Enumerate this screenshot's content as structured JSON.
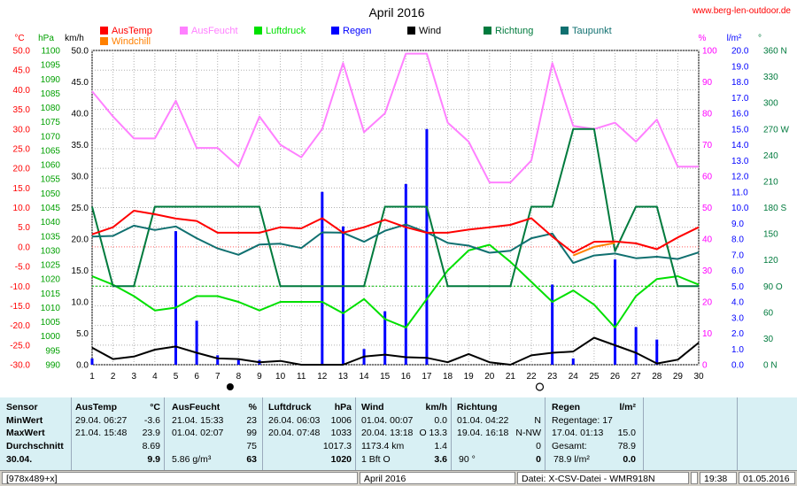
{
  "chart_data": {
    "type": "line",
    "title": "April 2016",
    "website": "www.berg-len-outdoor.de",
    "x": [
      1,
      2,
      3,
      4,
      5,
      6,
      7,
      8,
      9,
      10,
      11,
      12,
      13,
      14,
      15,
      16,
      17,
      18,
      19,
      20,
      21,
      22,
      23,
      24,
      25,
      26,
      27,
      28,
      29,
      30
    ],
    "x_tick_labels": [
      "1",
      "2",
      "3",
      "4",
      "5",
      "6",
      "7",
      "8",
      "9",
      "10",
      "11",
      "12",
      "13",
      "14",
      "15",
      "16",
      "17",
      "18",
      "19",
      "20",
      "21",
      "22",
      "23",
      "24",
      "25",
      "26",
      "27",
      "28",
      "29",
      "30"
    ],
    "moon_markers": {
      "full_moon": 7.6,
      "new_moon": 22.4
    },
    "axes": {
      "temp_c": {
        "label": "°C",
        "ylim": [
          -30,
          50
        ],
        "ticks": [
          "50.0",
          "45.0",
          "40.0",
          "35.0",
          "30.0",
          "25.0",
          "20.0",
          "15.0",
          "10.0",
          "5.0",
          "0.0",
          "-5.0",
          "-10.0",
          "-15.0",
          "-20.0",
          "-25.0",
          "-30.0"
        ]
      },
      "pressure_hpa": {
        "label": "hPa",
        "ylim": [
          990,
          1100
        ],
        "ticks": [
          "1100",
          "1095",
          "1090",
          "1085",
          "1080",
          "1075",
          "1070",
          "1065",
          "1060",
          "1055",
          "1050",
          "1045",
          "1040",
          "1035",
          "1030",
          "1025",
          "1020",
          "1015",
          "1010",
          "1005",
          "1000",
          "995",
          "990"
        ]
      },
      "wind_kmh": {
        "label": "km/h",
        "ylim": [
          0,
          50
        ],
        "ticks": [
          "50.0",
          "45.0",
          "40.0",
          "35.0",
          "30.0",
          "25.0",
          "20.0",
          "15.0",
          "10.0",
          "5.0",
          "0.0"
        ]
      },
      "humidity_pct": {
        "label": "%",
        "ylim": [
          0,
          100
        ],
        "ticks": [
          "100",
          "90",
          "80",
          "70",
          "60",
          "50",
          "40",
          "30",
          "20",
          "10",
          "0"
        ]
      },
      "rain_lm2": {
        "label": "l/m²",
        "ylim": [
          0,
          20
        ],
        "ticks": [
          "20.0",
          "19.0",
          "18.0",
          "17.0",
          "16.0",
          "15.0",
          "14.0",
          "13.0",
          "12.0",
          "11.0",
          "10.0",
          "9.0",
          "8.0",
          "7.0",
          "6.0",
          "5.0",
          "4.0",
          "3.0",
          "2.0",
          "1.0",
          "0.0"
        ]
      },
      "direction_deg": {
        "label": "°",
        "ylim": [
          0,
          360
        ],
        "ticks": [
          "360 N",
          "330",
          "300",
          "270 W",
          "240",
          "210",
          "180 S",
          "150",
          "120",
          "90 O",
          "60",
          "30",
          "0 N"
        ]
      }
    },
    "series": [
      {
        "name": "AusTemp",
        "color": "#ff0000",
        "axis": "temp_c",
        "values": [
          3.2,
          5.0,
          9.2,
          8.3,
          7.2,
          6.6,
          3.6,
          3.6,
          3.6,
          5.0,
          4.7,
          7.3,
          3.6,
          5.0,
          6.9,
          5.0,
          3.6,
          3.6,
          4.4,
          5.0,
          5.6,
          7.3,
          2.6,
          -1.5,
          1.3,
          1.4,
          0.9,
          -0.6,
          2.4,
          5.0
        ]
      },
      {
        "name": "Windchill",
        "color": "#ff8000",
        "axis": "temp_c",
        "values": [
          null,
          null,
          null,
          null,
          null,
          null,
          null,
          null,
          null,
          null,
          null,
          null,
          null,
          null,
          null,
          null,
          null,
          null,
          null,
          null,
          null,
          null,
          null,
          -2.2,
          0.0,
          1.0,
          null,
          null,
          null,
          null
        ]
      },
      {
        "name": "AusFeucht",
        "color": "#ff80ff",
        "axis": "humidity_pct",
        "values": [
          87,
          79,
          72,
          72,
          84,
          69,
          69,
          63,
          79,
          70,
          66,
          75,
          96,
          74,
          80,
          99,
          99,
          77,
          71,
          58,
          58,
          65,
          96,
          76,
          75,
          77,
          71,
          78,
          63,
          63
        ]
      },
      {
        "name": "Luftdruck",
        "color": "#00e000",
        "axis": "pressure_hpa",
        "values": [
          1021,
          1018,
          1014,
          1009,
          1010,
          1014,
          1014,
          1012,
          1009,
          1012,
          1012,
          1012,
          1008,
          1013,
          1006,
          1003,
          1013,
          1023,
          1030,
          1032,
          1026,
          1019,
          1012,
          1016,
          1011,
          1003,
          1014,
          1020,
          1021,
          1018
        ]
      },
      {
        "name": "Regen",
        "color": "#0000ff",
        "axis": "rain_lm2",
        "type": "bar",
        "values": [
          0.4,
          0,
          0,
          0,
          8.5,
          2.8,
          0.6,
          0.3,
          0.3,
          0,
          0,
          11.0,
          8.8,
          1.0,
          3.4,
          11.5,
          15.0,
          0,
          0,
          0,
          0,
          0,
          5.1,
          0.4,
          0,
          6.7,
          2.4,
          1.6,
          0,
          0
        ]
      },
      {
        "name": "Wind",
        "color": "#000000",
        "axis": "wind_kmh",
        "values": [
          2.7,
          0.9,
          1.3,
          2.4,
          2.9,
          1.9,
          1.0,
          0.9,
          0.4,
          0.6,
          0,
          0,
          0,
          1.3,
          1.6,
          1.2,
          1.1,
          0.4,
          1.7,
          0.4,
          0,
          1.5,
          1.9,
          2.1,
          4.3,
          3.1,
          1.9,
          0.2,
          0.8,
          3.5
        ]
      },
      {
        "name": "Richtung",
        "color": "#007a3d",
        "axis": "direction_deg",
        "values": [
          181,
          90,
          90,
          181,
          181,
          181,
          181,
          181,
          181,
          90,
          90,
          90,
          90,
          90,
          181,
          181,
          181,
          90,
          90,
          90,
          90,
          181,
          181,
          270,
          270,
          130,
          181,
          181,
          90,
          90
        ]
      },
      {
        "name": "Taupunkt",
        "color": "#107070",
        "axis": "temp_c",
        "values": [
          2.6,
          2.8,
          5.4,
          4.3,
          5.2,
          2.2,
          -0.4,
          -2.0,
          0.6,
          0.8,
          -0.3,
          3.7,
          3.6,
          1.3,
          4.1,
          5.7,
          3.7,
          1.0,
          0.3,
          -1.5,
          -1.0,
          2.2,
          3.4,
          -4.1,
          -2.2,
          -1.7,
          -2.9,
          -2.5,
          -3.1,
          -1.4
        ]
      }
    ]
  },
  "legend": [
    {
      "name": "AusTemp",
      "color": "#ff0000"
    },
    {
      "name": "Windchill",
      "color": "#ff8000"
    },
    {
      "name": "AusFeucht",
      "color": "#ff80ff"
    },
    {
      "name": "Luftdruck",
      "color": "#00e000"
    },
    {
      "name": "Regen",
      "color": "#0000ff"
    },
    {
      "name": "Wind",
      "color": "#000000"
    },
    {
      "name": "Richtung",
      "color": "#007a3d"
    },
    {
      "name": "Taupunkt",
      "color": "#107070"
    }
  ],
  "stats": {
    "sensor": {
      "header": "Sensor",
      "min": "MinWert",
      "max": "MaxWert",
      "avg": "Durchschnitt",
      "last": "30.04."
    },
    "austemp": {
      "header": "AusTemp",
      "unit": "°C",
      "min_time": "29.04.  06:27",
      "min_val": "-3.6",
      "max_time": "21.04.  15:48",
      "max_val": "23.9",
      "avg_val": "8.69",
      "last_val": "9.9"
    },
    "ausfeucht": {
      "header": "AusFeucht",
      "unit": "%",
      "min_time": "21.04.  15:33",
      "min_val": "23",
      "max_time": "01.04.  02:07",
      "max_val": "99",
      "avg_val": "75",
      "abs": "5.86 g/m³",
      "last_val": "63"
    },
    "luftdruck": {
      "header": "Luftdruck",
      "unit": "hPa",
      "min_time": "26.04.  06:03",
      "min_val": "1006",
      "max_time": "20.04.  07:48",
      "max_val": "1033",
      "avg_val": "1017.3",
      "last_val": "1020"
    },
    "wind": {
      "header": "Wind",
      "unit": "km/h",
      "min_time": "01.04.  00:07",
      "min_val": "0.0",
      "max_time": "20.04.  13:18",
      "max_val": "O 13.3",
      "km": "1173.4 km",
      "avg_val": "1.4",
      "bft": "1 Bft O",
      "last_val": "3.6"
    },
    "richtung": {
      "header": "Richtung",
      "min_time": "01.04.  04:22",
      "min_val": "N",
      "max_time": "19.04.  16:18",
      "max_val": "N-NW",
      "avg_val": "0",
      "deg": "90 °",
      "last_val": "0"
    },
    "regen": {
      "header": "Regen",
      "unit": "l/m²",
      "days": "Regentage: 17",
      "max_time": "17.04.  01:13",
      "max_val": "15.0",
      "total_label": "Gesamt:",
      "total_val": "78.9",
      "last": "78.9 l/m²",
      "last_val": "0.0"
    }
  },
  "status": {
    "size": "[978x489+x]",
    "period": "April 2016",
    "file": "Datei: X-CSV-Datei - WMR918N",
    "time": "19:38",
    "date": "01.05.2016"
  }
}
